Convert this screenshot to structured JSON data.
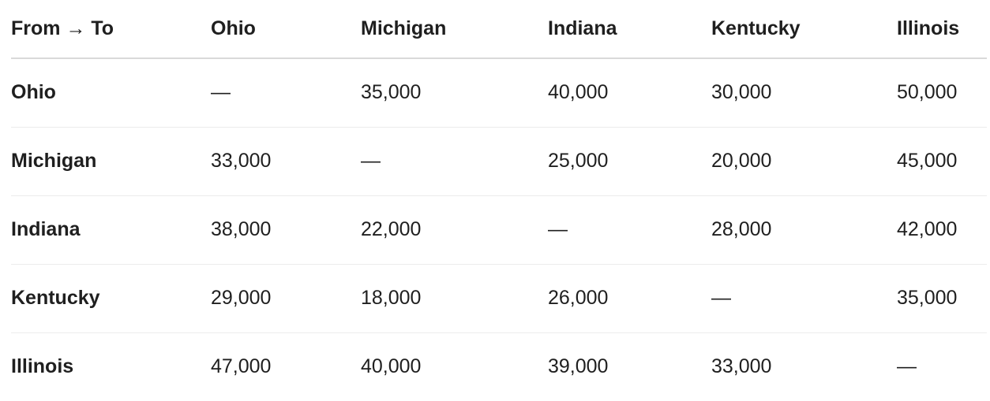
{
  "table": {
    "corner_header": "From → To",
    "columns": [
      "Ohio",
      "Michigan",
      "Indiana",
      "Kentucky",
      "Illinois"
    ],
    "rows": [
      {
        "label": "Ohio",
        "cells": [
          "—",
          "35,000",
          "40,000",
          "30,000",
          "50,000"
        ]
      },
      {
        "label": "Michigan",
        "cells": [
          "33,000",
          "—",
          "25,000",
          "20,000",
          "45,000"
        ]
      },
      {
        "label": "Indiana",
        "cells": [
          "38,000",
          "22,000",
          "—",
          "28,000",
          "42,000"
        ]
      },
      {
        "label": "Kentucky",
        "cells": [
          "29,000",
          "18,000",
          "26,000",
          "—",
          "35,000"
        ]
      },
      {
        "label": "Illinois",
        "cells": [
          "47,000",
          "40,000",
          "39,000",
          "33,000",
          "—"
        ]
      }
    ]
  },
  "colors": {
    "text": "#1f1f1f",
    "header_divider": "#d9d9d9",
    "row_divider": "#ececec",
    "background": "#ffffff"
  }
}
